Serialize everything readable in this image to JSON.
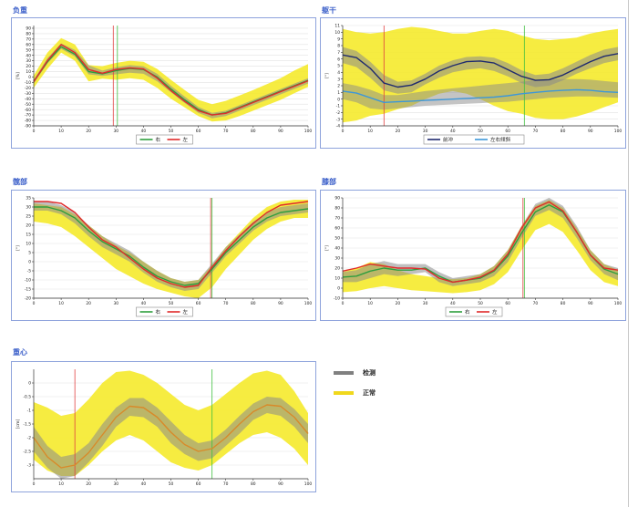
{
  "legend_big": {
    "items": [
      {
        "label": "检测",
        "color": "#808080"
      },
      {
        "label": "正常",
        "color": "#f0d81c"
      }
    ]
  },
  "chart_data": [
    {
      "id": "c1",
      "title": "负重",
      "type": "line",
      "ylabel": "[%]",
      "x": [
        0,
        5,
        10,
        15,
        20,
        25,
        30,
        35,
        40,
        45,
        50,
        55,
        60,
        65,
        70,
        75,
        80,
        85,
        90,
        95,
        100
      ],
      "xlim": [
        0,
        100
      ],
      "ylim": [
        -90,
        95
      ],
      "yticks": [
        -90,
        -80,
        -70,
        -60,
        -50,
        -40,
        -30,
        -20,
        -10,
        0,
        10,
        20,
        30,
        40,
        50,
        60,
        70,
        80,
        90
      ],
      "xticks": [
        0,
        10,
        20,
        30,
        40,
        50,
        60,
        70,
        80,
        90,
        100
      ],
      "band": {
        "upper": [
          3,
          45,
          72,
          60,
          22,
          20,
          26,
          30,
          28,
          15,
          -5,
          -24,
          -42,
          -50,
          -44,
          -34,
          -24,
          -13,
          -2,
          12,
          24
        ],
        "lower": [
          -20,
          15,
          45,
          30,
          -8,
          -3,
          -5,
          -2,
          -5,
          -20,
          -40,
          -56,
          -72,
          -82,
          -80,
          -72,
          -62,
          -52,
          -42,
          -30,
          -18
        ]
      },
      "gray_band": {
        "upper": [
          -5,
          35,
          62,
          50,
          22,
          12,
          18,
          22,
          20,
          6,
          -16,
          -36,
          -55,
          -66,
          -62,
          -52,
          -42,
          -32,
          -22,
          -12,
          -2
        ],
        "lower": [
          -12,
          25,
          52,
          38,
          5,
          2,
          5,
          8,
          6,
          -8,
          -28,
          -48,
          -66,
          -76,
          -72,
          -62,
          -52,
          -42,
          -32,
          -22,
          -12
        ]
      },
      "series": [
        {
          "name": "右",
          "color": "#2e9e3e",
          "values": [
            -8,
            28,
            56,
            42,
            10,
            6,
            12,
            16,
            14,
            0,
            -22,
            -42,
            -60,
            -70,
            -66,
            -56,
            -46,
            -36,
            -26,
            -16,
            -6
          ]
        },
        {
          "name": "左",
          "color": "#e02a2a",
          "values": [
            -9,
            30,
            60,
            45,
            14,
            7,
            14,
            17,
            15,
            -2,
            -25,
            -45,
            -62,
            -70,
            -67,
            -57,
            -47,
            -37,
            -27,
            -17,
            -7
          ]
        }
      ],
      "vlines": [
        {
          "x": 29,
          "color": "#e04040"
        },
        {
          "x": 30.5,
          "color": "#40c040"
        }
      ],
      "legend": [
        "右",
        "左"
      ]
    },
    {
      "id": "c2",
      "title": "躯干",
      "type": "line",
      "ylabel": "[°]",
      "x": [
        0,
        5,
        10,
        15,
        20,
        25,
        30,
        35,
        40,
        45,
        50,
        55,
        60,
        65,
        70,
        75,
        80,
        85,
        90,
        95,
        100
      ],
      "xlim": [
        0,
        100
      ],
      "ylim": [
        -4,
        11
      ],
      "yticks": [
        -4,
        -3,
        -2,
        -1,
        0,
        1,
        2,
        3,
        4,
        5,
        6,
        7,
        8,
        9,
        10,
        11
      ],
      "xticks": [
        0,
        10,
        20,
        30,
        40,
        50,
        60,
        70,
        80,
        90,
        100
      ],
      "band": {
        "upper": [
          10.5,
          10,
          9.8,
          10,
          10.5,
          10.8,
          10.6,
          10.2,
          9.8,
          9.8,
          10.2,
          10.5,
          10.2,
          9.5,
          9,
          8.8,
          9,
          9.2,
          9.8,
          10.2,
          10.5
        ],
        "lower": [
          -3.5,
          -3.2,
          -2.5,
          -2.2,
          -1.5,
          -1,
          0,
          0.8,
          1.2,
          0.8,
          0,
          -1,
          -1.8,
          -2.2,
          -2.8,
          -3,
          -3,
          -2.6,
          -2,
          -1.2,
          -0.5
        ]
      },
      "gray_band": {
        "upper": [
          7.8,
          7.2,
          5.6,
          3.6,
          2.6,
          2.8,
          3.8,
          5,
          5.8,
          6.3,
          6.4,
          6.2,
          5.4,
          4.3,
          3.6,
          3.8,
          4.6,
          5.6,
          6.6,
          7.4,
          7.8
        ],
        "lower": [
          5.4,
          4.8,
          3.2,
          1.3,
          0.8,
          1,
          2.2,
          3.2,
          4,
          4.4,
          4.6,
          4.2,
          3.4,
          2.4,
          1.8,
          2,
          2.8,
          3.8,
          4.6,
          5.4,
          5.8
        ]
      },
      "series": [
        {
          "name": "前冲",
          "color": "#1f2a6e",
          "values": [
            6.6,
            6.2,
            4.6,
            2.4,
            1.8,
            2.1,
            3,
            4.2,
            5,
            5.6,
            5.7,
            5.4,
            4.4,
            3.4,
            2.8,
            2.9,
            3.6,
            4.6,
            5.6,
            6.4,
            6.8
          ]
        },
        {
          "name": "左右倾斜",
          "color": "#3d97d8",
          "values": [
            1.2,
            0.9,
            0.2,
            -0.5,
            -0.4,
            -0.3,
            -0.2,
            -0.1,
            0,
            0.1,
            0.2,
            0.3,
            0.5,
            0.8,
            1,
            1.2,
            1.3,
            1.4,
            1.3,
            1.1,
            1
          ]
        }
      ],
      "gray_band2": {
        "upper": [
          2.4,
          2,
          1.4,
          0.6,
          0.6,
          0.9,
          1.2,
          1.4,
          1.6,
          1.8,
          2,
          2.2,
          2.4,
          2.6,
          2.8,
          2.9,
          3,
          3,
          2.9,
          2.7,
          2.5
        ],
        "lower": [
          0,
          -0.5,
          -1.4,
          -1.6,
          -1.4,
          -1.2,
          -1,
          -0.9,
          -0.8,
          -0.7,
          -0.6,
          -0.5,
          -0.4,
          -0.2,
          0,
          0.2,
          0.3,
          0.4,
          0.4,
          0.3,
          0.2
        ]
      },
      "vlines": [
        {
          "x": 15,
          "color": "#e04040"
        },
        {
          "x": 66,
          "color": "#40c040"
        }
      ],
      "legend": [
        "前冲",
        "左右倾斜"
      ]
    },
    {
      "id": "c3",
      "title": "髋部",
      "type": "line",
      "ylabel": "[°]",
      "x": [
        0,
        5,
        10,
        15,
        20,
        25,
        30,
        35,
        40,
        45,
        50,
        55,
        60,
        65,
        70,
        75,
        80,
        85,
        90,
        95,
        100
      ],
      "xlim": [
        0,
        100
      ],
      "ylim": [
        -20,
        35
      ],
      "yticks": [
        -20,
        -15,
        -10,
        -5,
        0,
        5,
        10,
        15,
        20,
        25,
        30,
        35
      ],
      "xticks": [
        0,
        10,
        20,
        30,
        40,
        50,
        60,
        70,
        80,
        90,
        100
      ],
      "band": {
        "upper": [
          32,
          31,
          30,
          26,
          20,
          14,
          9,
          5,
          0,
          -5,
          -9,
          -11,
          -10,
          -2,
          8,
          16,
          24,
          30,
          33,
          34,
          34
        ],
        "lower": [
          22,
          21,
          19,
          14,
          8,
          2,
          -4,
          -8,
          -12,
          -15,
          -17,
          -19,
          -20,
          -14,
          -4,
          4,
          12,
          18,
          22,
          24,
          24
        ]
      },
      "gray_band": {
        "upper": [
          33,
          33,
          31,
          27,
          20,
          14,
          10,
          6,
          0,
          -5,
          -9,
          -11,
          -10,
          -1,
          8,
          15,
          22,
          27,
          30,
          31,
          32
        ],
        "lower": [
          28,
          28,
          26,
          21,
          14,
          8,
          4,
          0,
          -6,
          -11,
          -14,
          -16,
          -15,
          -6,
          3,
          10,
          17,
          22,
          25,
          26,
          27
        ]
      },
      "series": [
        {
          "name": "右",
          "color": "#2e9e3e",
          "values": [
            30,
            30,
            28,
            24,
            17,
            11,
            7,
            3,
            -3,
            -8,
            -11,
            -13,
            -12,
            -4,
            5,
            12,
            19,
            24,
            27,
            28,
            29
          ]
        },
        {
          "name": "左",
          "color": "#e02a2a",
          "values": [
            33,
            33,
            32,
            27,
            19,
            12,
            8,
            2,
            -4,
            -9,
            -12,
            -14,
            -13,
            -3,
            6,
            14,
            21,
            27,
            31,
            32,
            33
          ]
        }
      ],
      "vlines": [
        {
          "x": 64.5,
          "color": "#e04040"
        },
        {
          "x": 65,
          "color": "#40c040"
        }
      ],
      "legend": [
        "右",
        "左"
      ]
    },
    {
      "id": "c4",
      "title": "膝部",
      "type": "line",
      "ylabel": "[°]",
      "x": [
        0,
        5,
        10,
        15,
        20,
        25,
        30,
        35,
        40,
        45,
        50,
        55,
        60,
        65,
        70,
        75,
        80,
        85,
        90,
        95,
        100
      ],
      "xlim": [
        0,
        100
      ],
      "ylim": [
        -10,
        90
      ],
      "yticks": [
        -10,
        0,
        10,
        20,
        30,
        40,
        50,
        60,
        70,
        80,
        90
      ],
      "xticks": [
        0,
        10,
        20,
        30,
        40,
        50,
        60,
        70,
        80,
        90,
        100
      ],
      "band": {
        "upper": [
          16,
          20,
          26,
          24,
          18,
          14,
          12,
          10,
          9,
          10,
          14,
          22,
          38,
          62,
          82,
          88,
          80,
          60,
          38,
          24,
          18
        ],
        "lower": [
          -4,
          -3,
          0,
          2,
          0,
          -2,
          -3,
          -4,
          -5,
          -4,
          -2,
          4,
          16,
          38,
          58,
          64,
          56,
          38,
          18,
          6,
          2
        ]
      },
      "gray_band": {
        "upper": [
          16,
          18,
          24,
          27,
          24,
          24,
          24,
          16,
          10,
          12,
          14,
          22,
          38,
          62,
          84,
          90,
          82,
          62,
          38,
          24,
          20
        ],
        "lower": [
          6,
          6,
          10,
          14,
          12,
          14,
          16,
          6,
          2,
          4,
          6,
          12,
          26,
          50,
          72,
          78,
          70,
          50,
          28,
          14,
          8
        ]
      },
      "series": [
        {
          "name": "右",
          "color": "#2e9e3e",
          "values": [
            11,
            12,
            17,
            20,
            18,
            18,
            20,
            12,
            6,
            8,
            10,
            17,
            32,
            55,
            76,
            83,
            76,
            56,
            33,
            19,
            14
          ]
        },
        {
          "name": "左",
          "color": "#e02a2a",
          "values": [
            17,
            20,
            24,
            22,
            20,
            20,
            19,
            10,
            6,
            8,
            11,
            18,
            34,
            60,
            80,
            86,
            77,
            56,
            33,
            20,
            18
          ]
        }
      ],
      "vlines": [
        {
          "x": 65.5,
          "color": "#e04040"
        },
        {
          "x": 66,
          "color": "#40c040"
        }
      ],
      "legend": [
        "右",
        "左"
      ]
    },
    {
      "id": "c5",
      "title": "重心",
      "type": "line",
      "ylabel": "[cm]",
      "x": [
        0,
        5,
        10,
        15,
        20,
        25,
        30,
        35,
        40,
        45,
        50,
        55,
        60,
        65,
        70,
        75,
        80,
        85,
        90,
        95,
        100
      ],
      "xlim": [
        0,
        100
      ],
      "ylim": [
        -3.5,
        0.5
      ],
      "yticks": [
        -3,
        -2.5,
        -2,
        -1.5,
        -1,
        -0.5,
        0
      ],
      "xticks": [
        0,
        10,
        20,
        30,
        40,
        50,
        60,
        70,
        80,
        90,
        100
      ],
      "band": {
        "upper": [
          -0.7,
          -0.9,
          -1.2,
          -1.1,
          -0.6,
          0,
          0.4,
          0.45,
          0.3,
          0,
          -0.4,
          -0.8,
          -1,
          -0.8,
          -0.4,
          0,
          0.35,
          0.45,
          0.3,
          -0.3,
          -1.1
        ],
        "lower": [
          -2.8,
          -3.2,
          -3.4,
          -3.4,
          -3,
          -2.5,
          -2.1,
          -1.9,
          -2.1,
          -2.5,
          -2.9,
          -3.1,
          -3.2,
          -3,
          -2.6,
          -2.2,
          -1.9,
          -1.8,
          -2,
          -2.4,
          -3
        ]
      },
      "gray_band": {
        "upper": [
          -1.6,
          -2.3,
          -2.7,
          -2.6,
          -2.2,
          -1.5,
          -0.9,
          -0.55,
          -0.55,
          -0.9,
          -1.4,
          -1.9,
          -2.2,
          -2.1,
          -1.7,
          -1.2,
          -0.75,
          -0.5,
          -0.55,
          -0.95,
          -1.5
        ],
        "lower": [
          -2.5,
          -3.1,
          -3.5,
          -3.4,
          -2.9,
          -2.3,
          -1.6,
          -1.2,
          -1.25,
          -1.6,
          -2.2,
          -2.6,
          -2.85,
          -2.75,
          -2.3,
          -1.85,
          -1.35,
          -1.1,
          -1.2,
          -1.6,
          -2.2
        ]
      },
      "series": [
        {
          "name": "检测",
          "color": "#d88a2a",
          "values": [
            -2,
            -2.7,
            -3.1,
            -3,
            -2.55,
            -1.9,
            -1.25,
            -0.85,
            -0.9,
            -1.25,
            -1.8,
            -2.25,
            -2.5,
            -2.4,
            -2,
            -1.5,
            -1.05,
            -0.8,
            -0.85,
            -1.25,
            -1.85
          ]
        }
      ],
      "vlines": [
        {
          "x": 15,
          "color": "#e04040"
        },
        {
          "x": 65,
          "color": "#40c040"
        }
      ],
      "legend": []
    }
  ]
}
